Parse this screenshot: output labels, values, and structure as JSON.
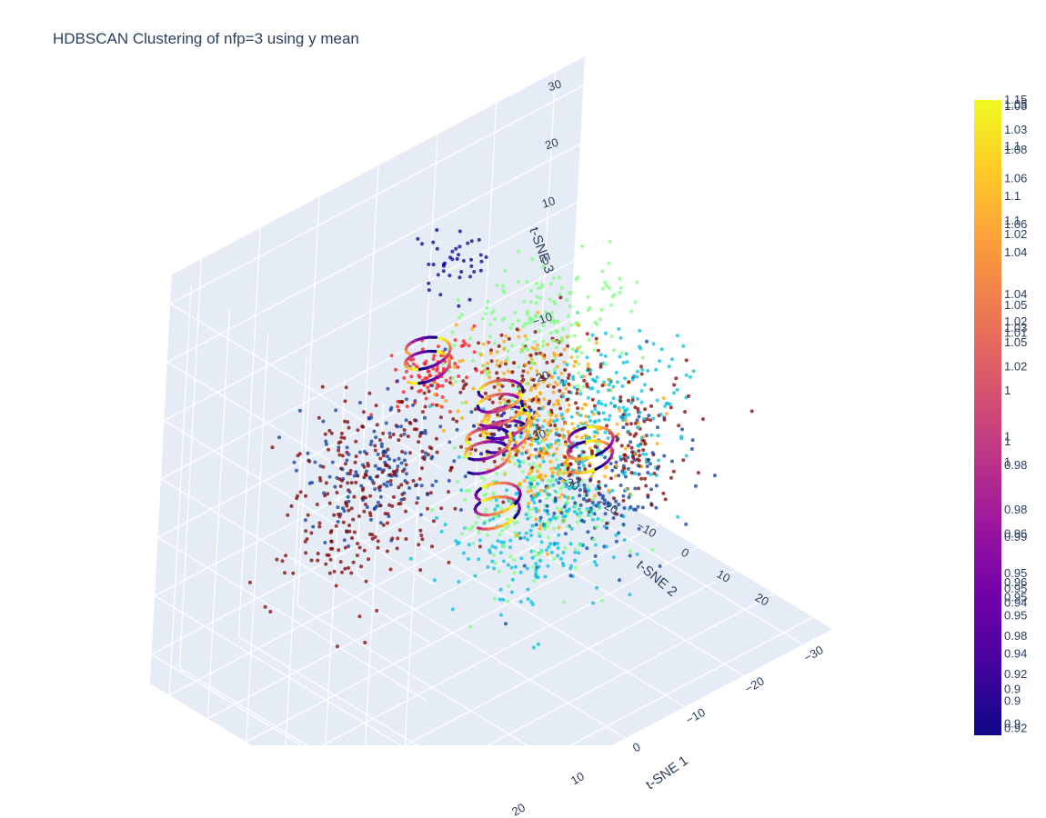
{
  "chart_data": {
    "type": "scatter3d",
    "title": "HDBSCAN Clustering of nfp=3 using y mean",
    "axes": {
      "x": {
        "label": "t-SNE 1",
        "ticks": [
          "−30",
          "−20",
          "−10",
          "0",
          "10",
          "20"
        ],
        "range": [
          -35,
          35
        ]
      },
      "y": {
        "label": "t-SNE 2",
        "ticks": [
          "−30",
          "−20",
          "−10",
          "0",
          "10",
          "20"
        ],
        "range": [
          -35,
          35
        ]
      },
      "z": {
        "label": "t-SNE 3",
        "ticks": [
          "−30",
          "−20",
          "−10",
          "0",
          "10",
          "20",
          "30"
        ],
        "range": [
          -35,
          35
        ]
      }
    },
    "clusters": [
      {
        "color": "#800000",
        "centers": [
          [
            5,
            12,
            18
          ],
          [
            -6,
            20,
            5
          ],
          [
            18,
            -4,
            8
          ],
          [
            12,
            -18,
            -14
          ]
        ],
        "spread": 6,
        "n": 520
      },
      {
        "color": "#ff1a1a",
        "centers": [
          [
            20,
            10,
            28
          ]
        ],
        "spread": 3,
        "n": 90
      },
      {
        "color": "#ffa500",
        "centers": [
          [
            0,
            4,
            12
          ],
          [
            -4,
            10,
            2
          ]
        ],
        "spread": 5.5,
        "n": 360
      },
      {
        "color": "#7fff7f",
        "centers": [
          [
            -12,
            -8,
            12
          ],
          [
            -6,
            2,
            -12
          ]
        ],
        "spread": 6,
        "n": 360
      },
      {
        "color": "#0d3b9e",
        "centers": [
          [
            12,
            -14,
            -2
          ],
          [
            -8,
            14,
            -6
          ]
        ],
        "spread": 6,
        "n": 300
      },
      {
        "color": "#00bfdf",
        "centers": [
          [
            -22,
            -8,
            -8
          ],
          [
            -10,
            -4,
            -20
          ]
        ],
        "spread": 6.5,
        "n": 420
      },
      {
        "color": "#00008b",
        "centers": [
          [
            -6,
            -22,
            20
          ],
          [
            -4,
            -4,
            0
          ]
        ],
        "spread": 2.5,
        "n": 80
      }
    ],
    "colorbar": {
      "colors": [
        "#0d0887",
        "#46039f",
        "#7201a8",
        "#9c179e",
        "#bd3786",
        "#d8576b",
        "#ed7953",
        "#fb9f3a",
        "#fdca26",
        "#f0f921"
      ],
      "labels": [
        {
          "t": "1.15",
          "f": 1.0
        },
        {
          "t": "1.05",
          "f": 0.993
        },
        {
          "t": "1.08",
          "f": 0.99
        },
        {
          "t": "1.03",
          "f": 0.953
        },
        {
          "t": "1.1",
          "f": 0.927
        },
        {
          "t": "1.08",
          "f": 0.921
        },
        {
          "t": "1.06",
          "f": 0.876
        },
        {
          "t": "1.1",
          "f": 0.848
        },
        {
          "t": "1.1",
          "f": 0.81
        },
        {
          "t": "1.06",
          "f": 0.804
        },
        {
          "t": "1.02",
          "f": 0.788
        },
        {
          "t": "1.04",
          "f": 0.76
        },
        {
          "t": "1.04",
          "f": 0.694
        },
        {
          "t": "1.05",
          "f": 0.677
        },
        {
          "t": "1.02",
          "f": 0.651
        },
        {
          "t": "1.03",
          "f": 0.641
        },
        {
          "t": "1.01",
          "f": 0.633
        },
        {
          "t": "1.05",
          "f": 0.618
        },
        {
          "t": "1.02",
          "f": 0.58
        },
        {
          "t": "1",
          "f": 0.542
        },
        {
          "t": "1",
          "f": 0.47
        },
        {
          "t": "1",
          "f": 0.462
        },
        {
          "t": "1",
          "f": 0.43
        },
        {
          "t": "0.98",
          "f": 0.425
        },
        {
          "t": "0.98",
          "f": 0.355
        },
        {
          "t": "0.96",
          "f": 0.317
        },
        {
          "t": "0.99",
          "f": 0.312
        },
        {
          "t": "0.95",
          "f": 0.255
        },
        {
          "t": "0.96",
          "f": 0.24
        },
        {
          "t": "0.95",
          "f": 0.23
        },
        {
          "t": "0.95",
          "f": 0.217
        },
        {
          "t": "0.94",
          "f": 0.208
        },
        {
          "t": "0.95",
          "f": 0.188
        },
        {
          "t": "0.98",
          "f": 0.156
        },
        {
          "t": "0.94",
          "f": 0.128
        },
        {
          "t": "0.92",
          "f": 0.096
        },
        {
          "t": "0.9",
          "f": 0.072
        },
        {
          "t": "0.9",
          "f": 0.054
        },
        {
          "t": "0.9",
          "f": 0.018
        },
        {
          "t": "0.92",
          "f": 0.011
        }
      ]
    }
  }
}
